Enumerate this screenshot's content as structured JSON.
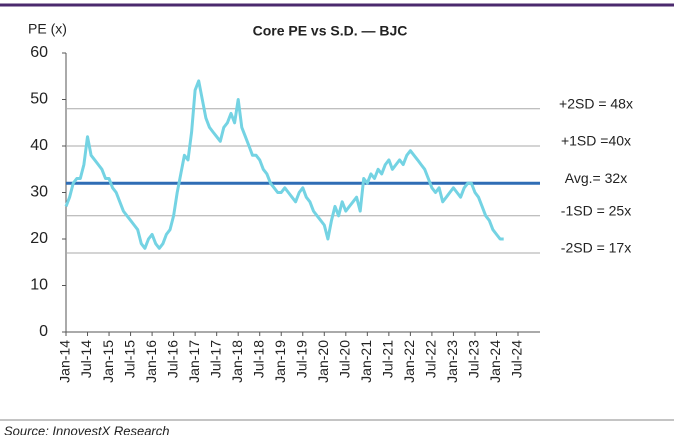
{
  "chart_data": {
    "type": "line",
    "title": "Core PE vs S.D. — BJC",
    "y_label": "PE (x)",
    "source": "Source: InnovestX Research",
    "categories": [
      "Jan-14",
      null,
      null,
      null,
      null,
      null,
      "Jul-14",
      null,
      null,
      null,
      null,
      null,
      "Jan-15",
      null,
      null,
      null,
      null,
      null,
      "Jul-15",
      null,
      null,
      null,
      null,
      null,
      "Jan-16",
      null,
      null,
      null,
      null,
      null,
      "Jul-16",
      null,
      null,
      null,
      null,
      null,
      "Jan-17",
      null,
      null,
      null,
      null,
      null,
      "Jul-17",
      null,
      null,
      null,
      null,
      null,
      "Jan-18",
      null,
      null,
      null,
      null,
      null,
      "Jul-18",
      null,
      null,
      null,
      null,
      null,
      "Jan-19",
      null,
      null,
      null,
      null,
      null,
      "Jul-19",
      null,
      null,
      null,
      null,
      null,
      "Jan-20",
      null,
      null,
      null,
      null,
      null,
      "Jul-20",
      null,
      null,
      null,
      null,
      null,
      "Jan-21",
      null,
      null,
      null,
      null,
      null,
      "Jul-21",
      null,
      null,
      null,
      null,
      null,
      "Jan-22",
      null,
      null,
      null,
      null,
      null,
      "Jul-22",
      null,
      null,
      null,
      null,
      null,
      "Jan-23",
      null,
      null,
      null,
      null,
      null,
      "Jul-23",
      null,
      null,
      null,
      null,
      null,
      "Jan-24",
      null,
      null,
      null,
      null,
      null,
      "Jul-24"
    ],
    "series": [
      {
        "name": "Core PE",
        "color": "#74d3e3",
        "values": [
          27,
          29,
          32,
          33,
          33,
          36,
          42,
          38,
          37,
          36,
          35,
          33,
          33,
          31,
          30,
          28,
          26,
          25,
          24,
          23,
          22,
          19,
          18,
          20,
          21,
          19,
          18,
          19,
          21,
          22,
          25,
          30,
          34,
          38,
          37,
          43,
          52,
          54,
          50,
          46,
          44,
          43,
          42,
          41,
          44,
          45,
          47,
          45,
          50,
          44,
          42,
          40,
          38,
          38,
          37,
          35,
          34,
          32,
          31,
          30,
          30,
          31,
          30,
          29,
          28,
          30,
          31,
          29,
          28,
          26,
          25,
          24,
          23,
          20,
          24,
          27,
          25,
          28,
          26,
          27,
          28,
          29,
          26,
          33,
          32,
          34,
          33,
          35,
          34,
          36,
          37,
          35,
          36,
          37,
          36,
          38,
          39,
          38,
          37,
          36,
          35,
          33,
          31,
          30,
          31,
          28,
          29,
          30,
          31,
          30,
          29,
          31,
          32,
          32,
          30,
          29,
          27,
          25,
          24,
          22,
          21,
          20,
          20,
          null,
          null,
          null,
          null
        ]
      }
    ],
    "ref_lines": [
      {
        "label": "+2SD = 48x",
        "value": 48,
        "color": "#aaaaaa"
      },
      {
        "label": "+1SD =40x",
        "value": 40,
        "color": "#aaaaaa"
      },
      {
        "label": "Avg.= 32x",
        "value": 32,
        "color": "#2f6db5"
      },
      {
        "label": "-1SD = 25x",
        "value": 25,
        "color": "#aaaaaa"
      },
      {
        "label": "-2SD = 17x",
        "value": 17,
        "color": "#aaaaaa"
      }
    ],
    "ylim": [
      0,
      60
    ],
    "yticks": [
      0,
      10,
      20,
      30,
      40,
      50,
      60
    ]
  }
}
